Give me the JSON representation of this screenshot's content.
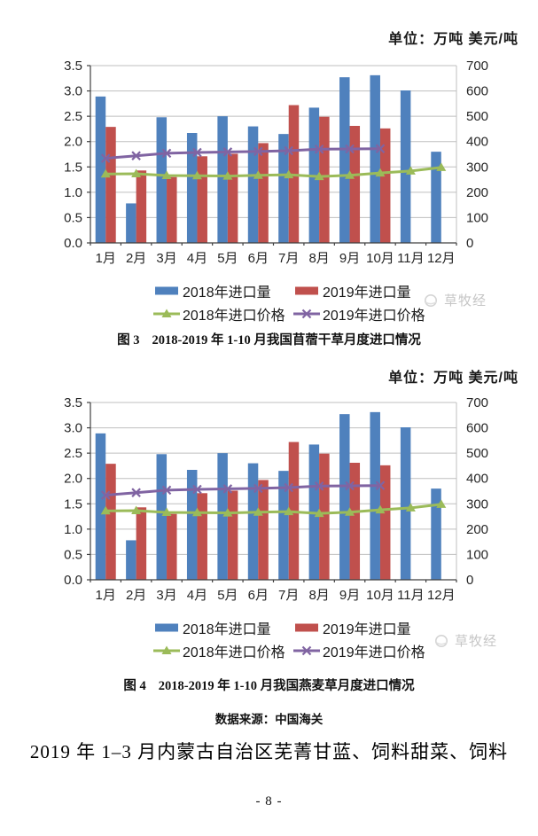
{
  "page": {
    "data_source": "数据来源：中国海关",
    "section_heading": "2019 年 1–3 月内蒙古自治区芜菁甘蓝、饲料甜菜、饲料",
    "page_number": "- 8 -",
    "watermark": "草牧经"
  },
  "chart_data": [
    {
      "type": "bar",
      "fig_label": "图 3",
      "title": "2018-2019 年 1-10 月我国苜蓿干草月度进口情况",
      "unit_label": "单位：万吨 美元/吨",
      "legend_position": "bottom",
      "grid": true,
      "categories": [
        "1月",
        "2月",
        "3月",
        "4月",
        "5月",
        "6月",
        "7月",
        "8月",
        "9月",
        "10月",
        "11月",
        "12月"
      ],
      "left_axis": {
        "min": 0,
        "max": 3.5,
        "step": 0.5,
        "labels": [
          "0.0",
          "0.5",
          "1.0",
          "1.5",
          "2.0",
          "2.5",
          "3.0",
          "3.5"
        ]
      },
      "right_axis": {
        "min": 0,
        "max": 700,
        "step": 100,
        "labels": [
          "0",
          "100",
          "200",
          "300",
          "400",
          "500",
          "600",
          "700"
        ]
      },
      "series": [
        {
          "name": "2018年进口量",
          "kind": "bar",
          "axis": "left",
          "color": "#4f81bd",
          "values": [
            2.89,
            0.78,
            2.48,
            2.17,
            2.5,
            2.3,
            2.15,
            2.67,
            3.27,
            3.31,
            3.01,
            1.8
          ]
        },
        {
          "name": "2019年进口量",
          "kind": "bar",
          "axis": "left",
          "color": "#c0504d",
          "values": [
            2.29,
            1.43,
            1.3,
            1.71,
            1.76,
            1.97,
            2.72,
            2.49,
            2.31,
            2.26,
            null,
            null
          ]
        },
        {
          "name": "2018年进口价格",
          "kind": "line",
          "marker": "triangle",
          "axis": "right",
          "color": "#9bbb59",
          "values": [
            272,
            273,
            266,
            265,
            264,
            267,
            269,
            262,
            267,
            276,
            284,
            298
          ]
        },
        {
          "name": "2019年进口价格",
          "kind": "line",
          "marker": "x",
          "axis": "right",
          "color": "#8064a2",
          "values": [
            334,
            344,
            354,
            357,
            359,
            361,
            364,
            370,
            371,
            372,
            null,
            null
          ]
        }
      ]
    },
    {
      "type": "bar",
      "fig_label": "图 4",
      "title": "2018-2019 年 1-10 月我国燕麦草月度进口情况",
      "unit_label": "单位：万吨 美元/吨",
      "legend_position": "bottom",
      "grid": true,
      "categories": [
        "1月",
        "2月",
        "3月",
        "4月",
        "5月",
        "6月",
        "7月",
        "8月",
        "9月",
        "10月",
        "11月",
        "12月"
      ],
      "left_axis": {
        "min": 0,
        "max": 3.5,
        "step": 0.5,
        "labels": [
          "0.0",
          "0.5",
          "1.0",
          "1.5",
          "2.0",
          "2.5",
          "3.0",
          "3.5"
        ]
      },
      "right_axis": {
        "min": 0,
        "max": 700,
        "step": 100,
        "labels": [
          "0",
          "100",
          "200",
          "300",
          "400",
          "500",
          "600",
          "700"
        ]
      },
      "series": [
        {
          "name": "2018年进口量",
          "kind": "bar",
          "axis": "left",
          "color": "#4f81bd",
          "values": [
            2.89,
            0.78,
            2.48,
            2.17,
            2.5,
            2.3,
            2.15,
            2.67,
            3.27,
            3.31,
            3.01,
            1.8
          ]
        },
        {
          "name": "2019年进口量",
          "kind": "bar",
          "axis": "left",
          "color": "#c0504d",
          "values": [
            2.29,
            1.43,
            1.3,
            1.71,
            1.76,
            1.97,
            2.72,
            2.49,
            2.31,
            2.26,
            null,
            null
          ]
        },
        {
          "name": "2018年进口价格",
          "kind": "line",
          "marker": "triangle",
          "axis": "right",
          "color": "#9bbb59",
          "values": [
            272,
            273,
            266,
            265,
            264,
            267,
            269,
            262,
            267,
            276,
            284,
            298
          ]
        },
        {
          "name": "2019年进口价格",
          "kind": "line",
          "marker": "x",
          "axis": "right",
          "color": "#8064a2",
          "values": [
            334,
            344,
            354,
            357,
            359,
            361,
            364,
            370,
            371,
            372,
            null,
            null
          ]
        }
      ]
    }
  ]
}
